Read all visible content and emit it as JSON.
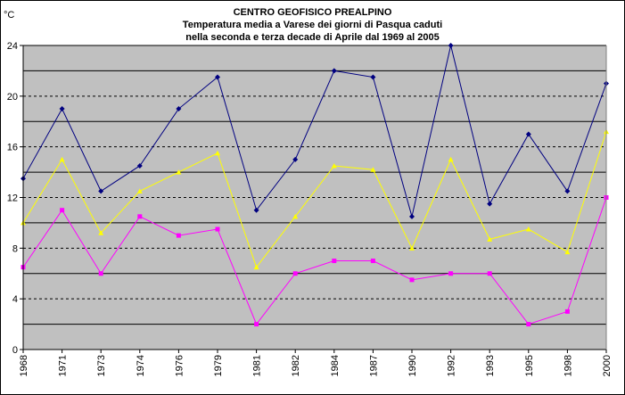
{
  "chart_data": {
    "type": "line",
    "title": "CENTRO GEOFISICO PREALPINO",
    "subtitle_lines": [
      "Temperatura media a Varese dei giorni di Pasqua caduti",
      "nella seconda e terza decade di Aprile dal 1969 al 2005"
    ],
    "y_unit_label": "°C",
    "categories": [
      "1968",
      "1971",
      "1973",
      "1974",
      "1976",
      "1979",
      "1981",
      "1982",
      "1984",
      "1987",
      "1990",
      "1992",
      "1993",
      "1995",
      "1998",
      "2000"
    ],
    "ylim": [
      0,
      24
    ],
    "y_ticks": [
      0,
      4,
      8,
      12,
      16,
      20,
      24
    ],
    "grid": {
      "solid_at": [
        2,
        6,
        10,
        14,
        18,
        22
      ],
      "dashed_at": [
        4,
        8,
        12,
        16,
        20
      ]
    },
    "plot_background": "#c0c0c0",
    "series": [
      {
        "color": "#000080",
        "marker": "diamond",
        "values": [
          13.5,
          19,
          12.5,
          14.5,
          19,
          21.5,
          11,
          15,
          22,
          21.5,
          10.5,
          24,
          11.5,
          17,
          12.5,
          21
        ]
      },
      {
        "color": "#ffff00",
        "marker": "triangle",
        "values": [
          10,
          15,
          9.2,
          12.5,
          14,
          15.5,
          6.5,
          10.5,
          14.5,
          14.2,
          8,
          15,
          8.7,
          9.5,
          7.7,
          17.2
        ]
      },
      {
        "color": "#ff00ff",
        "marker": "square",
        "values": [
          6.5,
          11,
          6,
          10.5,
          9,
          9.5,
          2,
          6,
          7,
          7,
          5.5,
          6,
          6,
          2,
          3,
          12
        ]
      }
    ]
  }
}
